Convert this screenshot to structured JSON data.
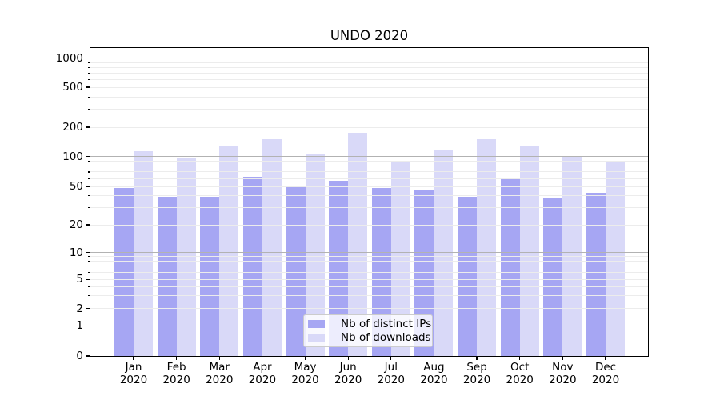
{
  "title": "UNDO 2020",
  "chart_data": {
    "type": "bar",
    "title": "UNDO 2020",
    "categories": [
      "Jan",
      "Feb",
      "Mar",
      "Apr",
      "May",
      "Jun",
      "Jul",
      "Aug",
      "Sep",
      "Oct",
      "Nov",
      "Dec"
    ],
    "category_year": "2020",
    "series": [
      {
        "name": "Nb of distinct IPs",
        "color": "#a6a6f3",
        "values": [
          48,
          39,
          39,
          62,
          51,
          57,
          48,
          46,
          39,
          59,
          38,
          43
        ]
      },
      {
        "name": "Nb of downloads",
        "color": "#d9d9f8",
        "values": [
          114,
          97,
          128,
          152,
          105,
          175,
          91,
          115,
          152,
          128,
          101,
          90
        ]
      }
    ],
    "yscale": "symlog",
    "yticks": [
      0,
      1,
      2,
      5,
      10,
      20,
      50,
      100,
      200,
      500,
      1000
    ],
    "ylim": [
      0,
      1300
    ],
    "grid": "both",
    "grid_on_top_of_bars": true,
    "legend_position": "lower-center",
    "colors": {
      "major_grid": "#b2b2b2",
      "minor_grid": "#ececec",
      "spine": "#000000",
      "text": "#000000"
    }
  }
}
